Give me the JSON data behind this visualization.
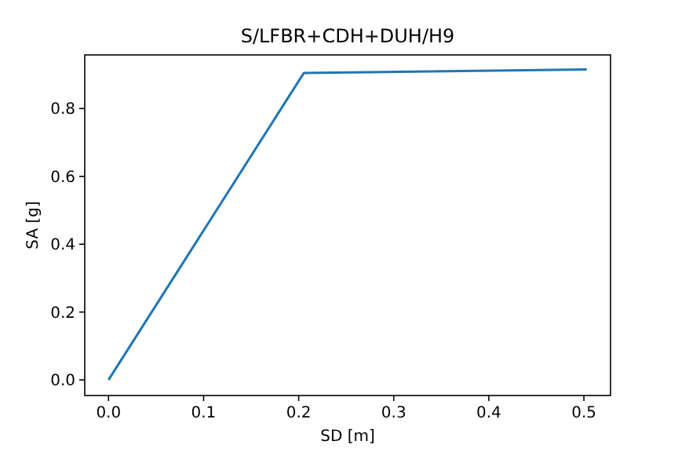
{
  "chart_data": {
    "type": "line",
    "title": "S/LFBR+CDH+DUH/H9",
    "xlabel": "SD [m]",
    "ylabel": "SA [g]",
    "x": [
      0,
      0.2055,
      0.503
    ],
    "series": [
      {
        "color": "#1f77b4",
        "values": [
          0,
          0.905,
          0.915
        ]
      }
    ],
    "xlim": [
      -0.025,
      0.528
    ],
    "ylim": [
      -0.046,
      0.958
    ],
    "xticks": [
      {
        "value": 0,
        "label": "0.0"
      },
      {
        "value": 0.1,
        "label": "0.1"
      },
      {
        "value": 0.2,
        "label": "0.2"
      },
      {
        "value": 0.3,
        "label": "0.3"
      },
      {
        "value": 0.4,
        "label": "0.4"
      },
      {
        "value": 0.5,
        "label": "0.5"
      }
    ],
    "yticks": [
      {
        "value": 0,
        "label": "0.0"
      },
      {
        "value": 0.2,
        "label": "0.2"
      },
      {
        "value": 0.4,
        "label": "0.4"
      },
      {
        "value": 0.6,
        "label": "0.6"
      },
      {
        "value": 0.8,
        "label": "0.8"
      }
    ],
    "grid": false,
    "marker": "none",
    "line_style": "solid"
  }
}
